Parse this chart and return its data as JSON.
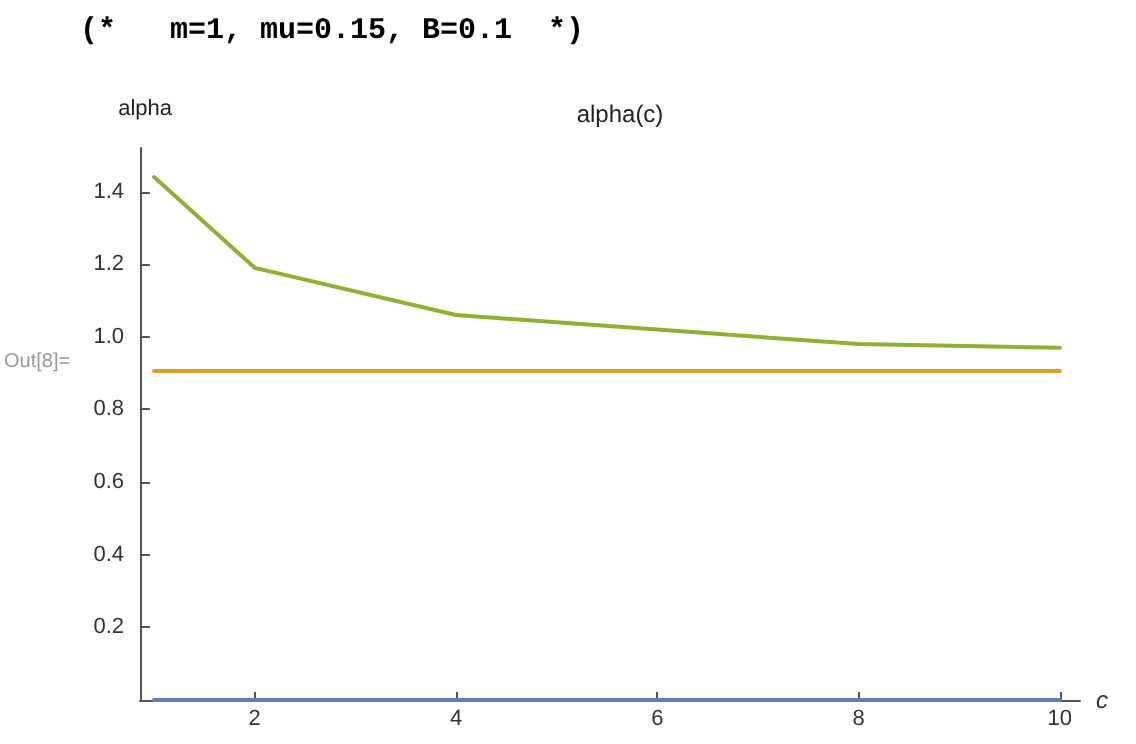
{
  "chart_data": {
    "type": "line",
    "title": "alpha(c)",
    "xlabel": "c",
    "ylabel": "alpha",
    "annotations": [
      "(*   m=1, mu=0.15, B=0.1  *)",
      "Out[8]="
    ],
    "x": [
      1,
      2,
      4,
      6,
      8,
      10
    ],
    "series": [
      {
        "color": "#5e81b5",
        "values": [
          0,
          0,
          0,
          0,
          0,
          0
        ]
      },
      {
        "color": "#e19c24",
        "values": [
          0.906,
          0.906,
          0.906,
          0.906,
          0.906,
          0.906
        ]
      },
      {
        "color": "#8fb032",
        "values": [
          1.44,
          1.19,
          1.06,
          1.02,
          0.98,
          0.97
        ]
      }
    ],
    "xlim": [
      0.86,
      10.2
    ],
    "ylim": [
      0,
      1.52
    ],
    "xticks": [
      2,
      4,
      6,
      8,
      10
    ],
    "yticks": [
      0.2,
      0.4,
      0.6,
      0.8,
      {
        "value": 1.0,
        "label": "1.0"
      },
      1.2,
      1.4
    ],
    "marker": "none",
    "line_style": "solid"
  }
}
